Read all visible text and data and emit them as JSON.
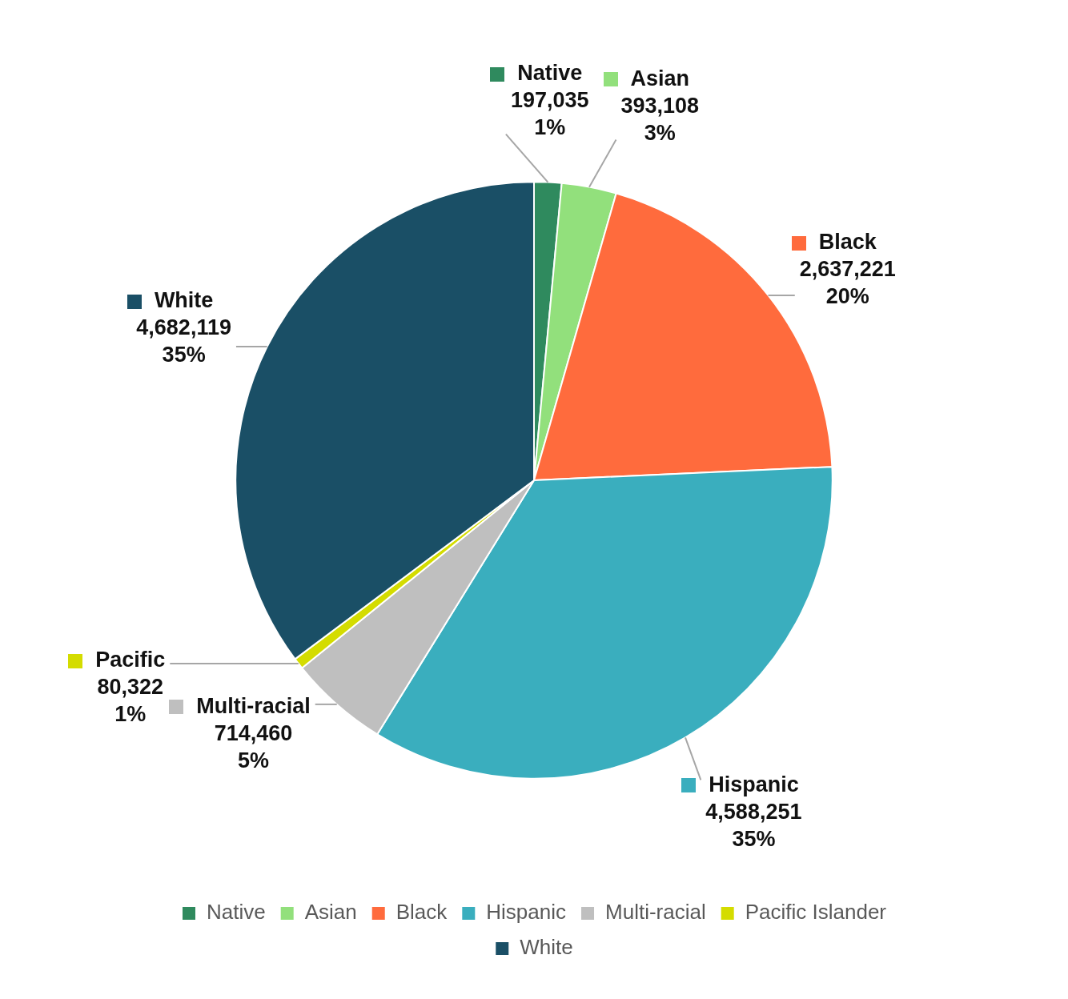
{
  "chart_data": {
    "type": "pie",
    "categories": [
      "Native",
      "Asian",
      "Black",
      "Hispanic",
      "Multi-racial",
      "Pacific Islander",
      "White"
    ],
    "values": [
      197035,
      393108,
      2637221,
      4588251,
      714460,
      80322,
      4682119
    ],
    "colors": [
      "#2f8a5e",
      "#92e07c",
      "#ff6b3d",
      "#3aaebe",
      "#bfbfbf",
      "#d4dc00",
      "#1a4f66"
    ],
    "value_labels": [
      "Native\n197,035\n1%",
      "Asian\n393,108\n3%",
      "Black\n2,637,221\n20%",
      "Hispanic\n4,588,251\n35%",
      "Multi-racial\n714,460\n5%",
      "Pacific\n80,322\n1%",
      "White\n4,682,119\n35%"
    ],
    "legend": "bottom"
  }
}
